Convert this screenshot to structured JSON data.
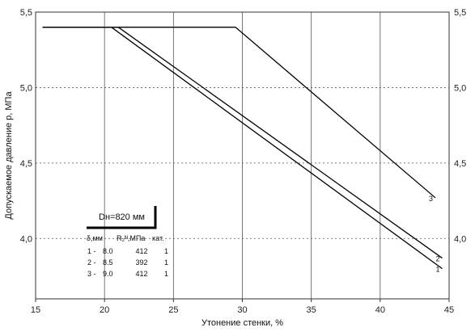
{
  "chart_data": {
    "type": "line",
    "xlabel": "Утонение стенки, %",
    "ylabel": "Допускаемое давление р, МПа",
    "xlim": [
      15,
      45
    ],
    "ylim": [
      3.6,
      5.5
    ],
    "x_ticks": [
      "15",
      "20",
      "25",
      "30",
      "35",
      "40",
      "45"
    ],
    "y_ticks": [
      "4,0",
      "4,5",
      "5,0",
      "5,5"
    ],
    "y_tick_values": [
      4.0,
      4.5,
      5.0,
      5.5
    ],
    "grid": true,
    "series": [
      {
        "name": "1",
        "points": [
          [
            15.5,
            5.4
          ],
          [
            20.5,
            5.4
          ],
          [
            44.5,
            3.8
          ]
        ]
      },
      {
        "name": "2",
        "points": [
          [
            15.5,
            5.4
          ],
          [
            21.0,
            5.4
          ],
          [
            44.5,
            3.87
          ]
        ]
      },
      {
        "name": "3",
        "points": [
          [
            15.5,
            5.4
          ],
          [
            29.5,
            5.4
          ],
          [
            44.0,
            4.27
          ]
        ]
      }
    ],
    "legend": {
      "diameter_label": "Dн=820 мм",
      "columns": [
        "δ,мм",
        "R₂ᴺ,МПа",
        "кат."
      ],
      "rows": [
        [
          "1 -",
          "8.0",
          "412",
          "1"
        ],
        [
          "2 -",
          "8.5",
          "392",
          "1"
        ],
        [
          "3 -",
          "9.0",
          "412",
          "1"
        ]
      ]
    },
    "line_color": "#000000",
    "grid_color": "#555555"
  }
}
